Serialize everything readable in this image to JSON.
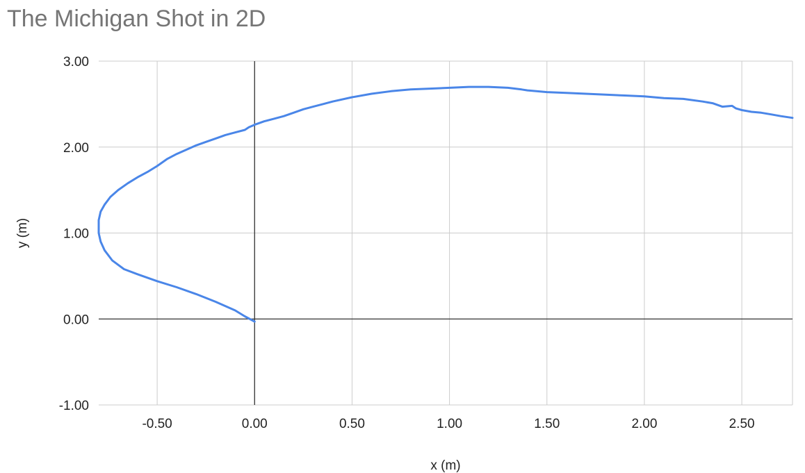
{
  "chart_data": {
    "type": "scatter",
    "title": "The Michigan Shot in 2D",
    "xlabel": "x (m)",
    "ylabel": "y (m)",
    "xlim": [
      -0.8,
      2.76
    ],
    "ylim": [
      -1.0,
      3.0
    ],
    "x_ticks": [
      -0.5,
      0.0,
      0.5,
      1.0,
      1.5,
      2.0,
      2.5
    ],
    "x_tick_labels": [
      "-0.50",
      "0.00",
      "0.50",
      "1.00",
      "1.50",
      "2.00",
      "2.50"
    ],
    "y_ticks": [
      -1.0,
      0.0,
      1.0,
      2.0,
      3.0
    ],
    "y_tick_labels": [
      "-1.00",
      "0.00",
      "1.00",
      "2.00",
      "3.00"
    ],
    "grid": true,
    "colors": {
      "series": "#4a86e8",
      "grid": "#cccccc",
      "zero_axis": "#333333",
      "title": "#757575"
    },
    "series": [
      {
        "style": "line",
        "x": [
          0.0,
          -0.05,
          -0.1,
          -0.2,
          -0.3,
          -0.4,
          -0.5,
          -0.6,
          -0.67,
          -0.73,
          -0.77,
          -0.79,
          -0.8,
          -0.8,
          -0.79,
          -0.77,
          -0.74,
          -0.7,
          -0.65,
          -0.6,
          -0.55,
          -0.5,
          -0.45,
          -0.4,
          -0.35,
          -0.3,
          -0.25,
          -0.2,
          -0.15,
          -0.1,
          -0.05,
          -0.03,
          0.0,
          0.05,
          0.1,
          0.15,
          0.2,
          0.25,
          0.3,
          0.35,
          0.4,
          0.5,
          0.6,
          0.7,
          0.8,
          0.9,
          1.0,
          1.1,
          1.2,
          1.3,
          1.37,
          1.4,
          1.5,
          1.6,
          1.7,
          1.8,
          1.9,
          2.0,
          2.1,
          2.2,
          2.3,
          2.35,
          2.4,
          2.45,
          2.47,
          2.5,
          2.55,
          2.6,
          2.65,
          2.7,
          2.76
        ],
        "y": [
          -0.03,
          0.03,
          0.1,
          0.2,
          0.29,
          0.37,
          0.44,
          0.52,
          0.58,
          0.68,
          0.8,
          0.9,
          1.0,
          1.15,
          1.25,
          1.33,
          1.42,
          1.5,
          1.58,
          1.65,
          1.71,
          1.78,
          1.86,
          1.92,
          1.97,
          2.02,
          2.06,
          2.1,
          2.14,
          2.17,
          2.2,
          2.23,
          2.26,
          2.3,
          2.33,
          2.36,
          2.4,
          2.44,
          2.47,
          2.5,
          2.53,
          2.58,
          2.62,
          2.65,
          2.67,
          2.68,
          2.69,
          2.7,
          2.7,
          2.69,
          2.67,
          2.66,
          2.64,
          2.63,
          2.62,
          2.61,
          2.6,
          2.59,
          2.57,
          2.56,
          2.53,
          2.51,
          2.47,
          2.48,
          2.45,
          2.43,
          2.41,
          2.4,
          2.38,
          2.36,
          2.34
        ]
      }
    ]
  }
}
